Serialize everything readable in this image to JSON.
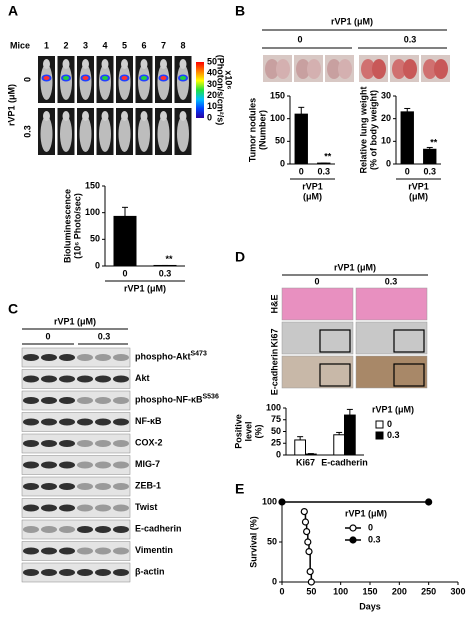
{
  "chart_data": [
    {
      "type": "bar",
      "categories": [
        "0",
        "0.3"
      ],
      "values": [
        93,
        1
      ],
      "errors": [
        17,
        0
      ],
      "color": "#000000",
      "ylim": [
        0,
        150
      ],
      "yticks": [
        0,
        50,
        100,
        150
      ],
      "ylabel": [
        "Bioluminescence",
        "(10⁶ Photo/sec)"
      ],
      "xlabel": [
        "rVP1 (μM)"
      ],
      "annotation": "**"
    },
    {
      "type": "bar",
      "categories": [
        "0",
        "0.3"
      ],
      "values": [
        110,
        2
      ],
      "errors": [
        15,
        0
      ],
      "color": "#000000",
      "ylim": [
        0,
        150
      ],
      "yticks": [
        0,
        50,
        100,
        150
      ],
      "ylabel": [
        "Tumor nodules",
        "(Number)"
      ],
      "xlabel": [
        "rVP1",
        "(μM)"
      ],
      "annotation": "**"
    },
    {
      "type": "bar",
      "categories": [
        "0",
        "0.3"
      ],
      "values": [
        23,
        6.5
      ],
      "errors": [
        1.5,
        0.8
      ],
      "color": "#000000",
      "ylim": [
        0,
        30
      ],
      "yticks": [
        0,
        10,
        20,
        30
      ],
      "ylabel": [
        "Relative lung weight",
        "(% of body weight)"
      ],
      "xlabel": [
        "rVP1",
        "(μM)"
      ],
      "annotation": "**"
    },
    {
      "type": "bar",
      "categories": [
        "Ki67",
        "E-cadherin"
      ],
      "legend_title": "rVP1 (μM)",
      "series": [
        {
          "name": "0",
          "color": "#ffffff",
          "values": [
            32,
            43
          ],
          "errors": [
            7,
            5
          ]
        },
        {
          "name": "0.3",
          "color": "#000000",
          "values": [
            2,
            85
          ],
          "errors": [
            1,
            12
          ]
        }
      ],
      "ylim": [
        0,
        100
      ],
      "yticks": [
        0,
        25,
        50,
        75,
        100
      ],
      "ylabel": [
        "Positive",
        "level",
        "(%)"
      ]
    },
    {
      "type": "line",
      "legend_title": "rVP1 (μM)",
      "xlabel": "Days",
      "ylabel": "Survival (%)",
      "xlim": [
        0,
        300
      ],
      "xticks": [
        0,
        50,
        100,
        150,
        200,
        250,
        300
      ],
      "ylim": [
        0,
        100
      ],
      "yticks": [
        0,
        50,
        100
      ],
      "series": [
        {
          "name": "0",
          "color": "#000000",
          "fill": "#ffffff",
          "x": [
            38,
            40,
            42,
            44,
            46,
            48,
            50
          ],
          "values": [
            88,
            75,
            63,
            50,
            38,
            13,
            0
          ]
        },
        {
          "name": "0.3",
          "color": "#000000",
          "fill": "#000000",
          "x": [
            0,
            250
          ],
          "values": [
            100,
            100
          ]
        }
      ]
    }
  ],
  "figure": {
    "panel_labels": [
      "A",
      "B",
      "C",
      "D",
      "E"
    ],
    "a": {
      "mice_label": "Mice",
      "mice": [
        "1",
        "2",
        "3",
        "4",
        "5",
        "6",
        "7",
        "8"
      ],
      "group_label": "rVP1 (μM)",
      "rows": [
        "0",
        "0.3"
      ],
      "colorbar": {
        "ticks": [
          50,
          40,
          30,
          20,
          10,
          0
        ],
        "unit": "x10⁶",
        "label": "(Photon/s/cm²/s)"
      }
    },
    "b": {
      "group_label": "rVP1 (μM)",
      "groups": [
        "0",
        "0.3"
      ]
    },
    "c": {
      "group_label": "rVP1 (μM)",
      "groups": [
        "0",
        "0.3"
      ],
      "blots": [
        {
          "name": "phospho-Akt",
          "sup": "S473"
        },
        {
          "name": "Akt"
        },
        {
          "name": "phospho-NF-κB",
          "sup": "S536"
        },
        {
          "name": "NF-κB"
        },
        {
          "name": "COX-2"
        },
        {
          "name": "MIG-7"
        },
        {
          "name": "ZEB-1"
        },
        {
          "name": "Twist"
        },
        {
          "name": "E-cadherin"
        },
        {
          "name": "Vimentin"
        },
        {
          "name": "β-actin"
        }
      ]
    },
    "d": {
      "group_label": "rVP1 (μM)",
      "groups": [
        "0",
        "0.3"
      ],
      "stains": [
        "H&E",
        "Ki67",
        "E-cadherin"
      ]
    }
  }
}
